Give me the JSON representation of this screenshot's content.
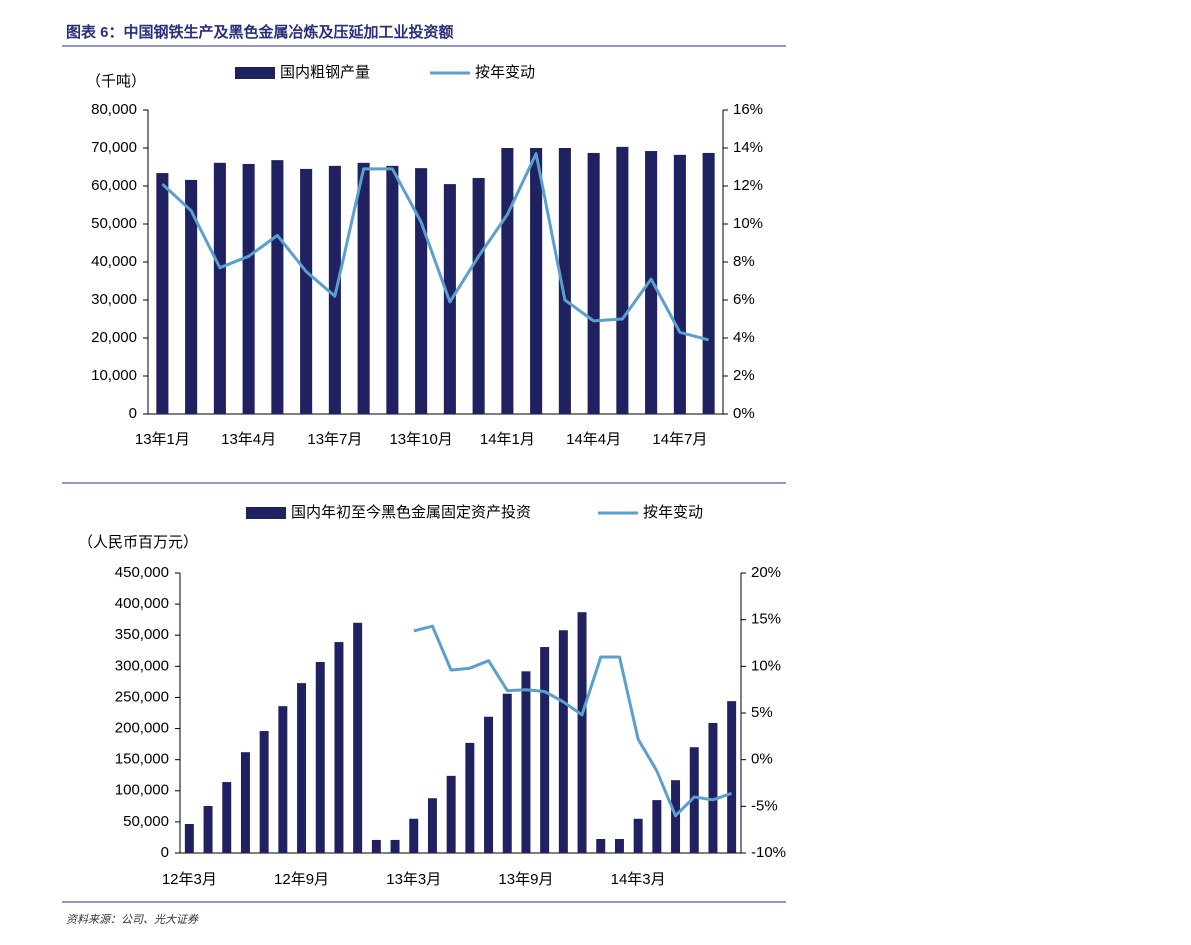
{
  "title": "图表 6：中国钢铁生产及黑色金属冶炼及压延加工业投资额",
  "source": "资料来源：公司、光大证券",
  "chart_data": [
    {
      "type": "bar-line",
      "y_label": "（千吨）",
      "categories": [
        "13年1月",
        null,
        null,
        "13年4月",
        null,
        null,
        "13年7月",
        null,
        null,
        "13年10月",
        null,
        null,
        "14年1月",
        null,
        null,
        "14年4月",
        null,
        null,
        "14年7月",
        null
      ],
      "series": [
        {
          "name": "国内粗钢产量",
          "type": "bar",
          "color": "#1f2160",
          "axis": "y",
          "values": [
            63400,
            61600,
            66100,
            65800,
            66800,
            64500,
            65300,
            66100,
            65300,
            64700,
            60500,
            62100,
            70000,
            70000,
            70000,
            68700,
            70300,
            69200,
            68200,
            68700
          ]
        },
        {
          "name": "按年变动",
          "type": "line",
          "color": "#5b9fcf",
          "axis": "y2",
          "values": [
            12.1,
            10.7,
            7.7,
            8.3,
            9.4,
            7.5,
            6.2,
            12.9,
            12.9,
            10.1,
            5.9,
            8.3,
            10.5,
            13.7,
            6.0,
            4.9,
            5.0,
            7.1,
            4.3,
            3.9
          ]
        }
      ],
      "ylim": [
        0,
        80000
      ],
      "yticks": [
        0,
        {
          "value": 10000,
          "label": "10,000"
        },
        {
          "value": 20000,
          "label": "20,000"
        },
        {
          "value": 30000,
          "label": "30,000"
        },
        {
          "value": 40000,
          "label": "40,000"
        },
        {
          "value": 50000,
          "label": "50,000"
        },
        {
          "value": 60000,
          "label": "60,000"
        },
        {
          "value": 70000,
          "label": "70,000"
        },
        {
          "value": 80000,
          "label": "80,000"
        }
      ],
      "y2lim": [
        0,
        16
      ],
      "y2ticks": [
        {
          "value": 0,
          "label": "0%"
        },
        {
          "value": 2,
          "label": "2%"
        },
        {
          "value": 4,
          "label": "4%"
        },
        {
          "value": 6,
          "label": "6%"
        },
        {
          "value": 8,
          "label": "8%"
        },
        {
          "value": 10,
          "label": "10%"
        },
        {
          "value": 12,
          "label": "12%"
        },
        {
          "value": 14,
          "label": "14%"
        },
        {
          "value": 16,
          "label": "16%"
        }
      ]
    },
    {
      "type": "bar-line",
      "y_label": "（人民币百万元）",
      "categories": [
        "12年3月",
        null,
        null,
        null,
        null,
        null,
        "12年9月",
        null,
        null,
        null,
        null,
        null,
        "13年3月",
        null,
        null,
        null,
        null,
        null,
        "13年9月",
        null,
        null,
        null,
        null,
        null,
        "14年3月",
        null,
        null,
        null,
        null,
        null
      ],
      "series": [
        {
          "name": "国内年初至今黑色金属固定资产投资",
          "type": "bar",
          "color": "#1f2160",
          "axis": "y",
          "values": [
            46600,
            75500,
            114000,
            162000,
            196000,
            236000,
            273000,
            307000,
            339000,
            370000,
            21000,
            21000,
            55000,
            88000,
            124000,
            177000,
            219000,
            256000,
            292000,
            331000,
            358000,
            387000,
            22500,
            22500,
            55000,
            85000,
            117000,
            170000,
            209000,
            244000
          ]
        },
        {
          "name": "按年变动",
          "type": "line",
          "color": "#5b9fcf",
          "axis": "y2",
          "values": [
            null,
            null,
            null,
            null,
            null,
            null,
            null,
            null,
            null,
            null,
            null,
            null,
            13.8,
            14.3,
            9.6,
            9.8,
            10.6,
            7.4,
            7.5,
            7.3,
            6.2,
            4.8,
            11.0,
            11.0,
            2.2,
            -1.2,
            -6.0,
            -4.0,
            -4.3,
            -3.6
          ]
        }
      ],
      "ylim": [
        0,
        450000
      ],
      "yticks": [
        0,
        {
          "value": 50000,
          "label": "50,000"
        },
        {
          "value": 100000,
          "label": "100,000"
        },
        {
          "value": 150000,
          "label": "150,000"
        },
        {
          "value": 200000,
          "label": "200,000"
        },
        {
          "value": 250000,
          "label": "250,000"
        },
        {
          "value": 300000,
          "label": "300,000"
        },
        {
          "value": 350000,
          "label": "350,000"
        },
        {
          "value": 400000,
          "label": "400,000"
        },
        {
          "value": 450000,
          "label": "450,000"
        }
      ],
      "y2lim": [
        -10,
        20
      ],
      "y2ticks": [
        {
          "value": -10,
          "label": "-10%"
        },
        {
          "value": -5,
          "label": "-5%"
        },
        {
          "value": 0,
          "label": "0%"
        },
        {
          "value": 5,
          "label": "5%"
        },
        {
          "value": 10,
          "label": "10%"
        },
        {
          "value": 15,
          "label": "15%"
        },
        {
          "value": 20,
          "label": "20%"
        }
      ]
    }
  ]
}
